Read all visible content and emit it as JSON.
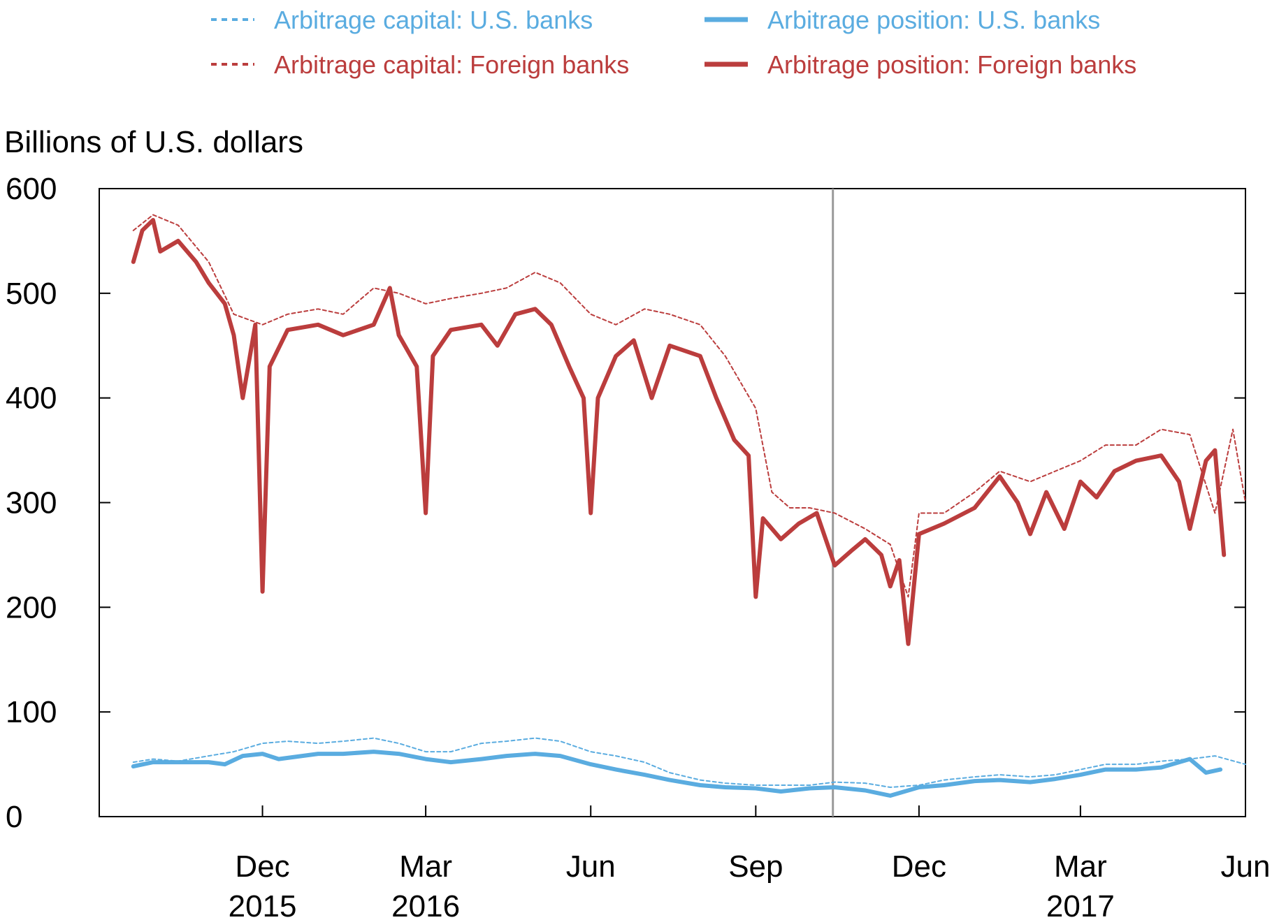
{
  "chart_data": {
    "type": "line",
    "ylabel": "Billions of U.S. dollars",
    "ylim": [
      0,
      600
    ],
    "yticks": [
      0,
      100,
      200,
      300,
      400,
      500,
      600
    ],
    "xlim": [
      "2015-09-01",
      "2017-06-01"
    ],
    "xticks": [
      {
        "date": "2015-12-01",
        "label": "Dec",
        "year": "2015"
      },
      {
        "date": "2016-03-01",
        "label": "Mar",
        "year": "2016"
      },
      {
        "date": "2016-06-01",
        "label": "Jun",
        "year": ""
      },
      {
        "date": "2016-09-01",
        "label": "Sep",
        "year": ""
      },
      {
        "date": "2016-12-01",
        "label": "Dec",
        "year": ""
      },
      {
        "date": "2017-03-01",
        "label": "Mar",
        "year": "2017"
      },
      {
        "date": "2017-06-01",
        "label": "Jun",
        "year": ""
      }
    ],
    "event_line": {
      "date": "2016-10-14"
    },
    "grid": false,
    "legend_position": "top",
    "colors": {
      "us": "#5aace0",
      "foreign": "#bb3d3d",
      "event_line": "#999999"
    },
    "series": [
      {
        "name": "Arbitrage capital: U.S. banks",
        "style": "dotted",
        "color": "#5aace0",
        "points": [
          [
            "2015-09-20",
            52
          ],
          [
            "2015-10-01",
            55
          ],
          [
            "2015-10-15",
            53
          ],
          [
            "2015-11-01",
            58
          ],
          [
            "2015-11-15",
            62
          ],
          [
            "2015-12-01",
            70
          ],
          [
            "2015-12-15",
            72
          ],
          [
            "2016-01-01",
            70
          ],
          [
            "2016-01-15",
            72
          ],
          [
            "2016-02-01",
            75
          ],
          [
            "2016-02-15",
            70
          ],
          [
            "2016-03-01",
            62
          ],
          [
            "2016-03-15",
            62
          ],
          [
            "2016-04-01",
            70
          ],
          [
            "2016-04-15",
            72
          ],
          [
            "2016-05-01",
            75
          ],
          [
            "2016-05-15",
            72
          ],
          [
            "2016-06-01",
            62
          ],
          [
            "2016-06-15",
            58
          ],
          [
            "2016-07-01",
            52
          ],
          [
            "2016-07-15",
            42
          ],
          [
            "2016-08-01",
            35
          ],
          [
            "2016-08-15",
            32
          ],
          [
            "2016-09-01",
            30
          ],
          [
            "2016-09-15",
            30
          ],
          [
            "2016-10-01",
            30
          ],
          [
            "2016-10-15",
            33
          ],
          [
            "2016-11-01",
            32
          ],
          [
            "2016-11-15",
            28
          ],
          [
            "2016-12-01",
            30
          ],
          [
            "2016-12-15",
            35
          ],
          [
            "2017-01-01",
            38
          ],
          [
            "2017-01-15",
            40
          ],
          [
            "2017-02-01",
            38
          ],
          [
            "2017-02-15",
            40
          ],
          [
            "2017-03-01",
            45
          ],
          [
            "2017-03-15",
            50
          ],
          [
            "2017-04-01",
            50
          ],
          [
            "2017-04-15",
            53
          ],
          [
            "2017-05-01",
            55
          ],
          [
            "2017-05-15",
            58
          ],
          [
            "2017-06-01",
            50
          ]
        ]
      },
      {
        "name": "Arbitrage position: U.S. banks",
        "style": "solid",
        "color": "#5aace0",
        "points": [
          [
            "2015-09-20",
            48
          ],
          [
            "2015-10-01",
            52
          ],
          [
            "2015-10-15",
            52
          ],
          [
            "2015-11-01",
            52
          ],
          [
            "2015-11-10",
            50
          ],
          [
            "2015-11-20",
            58
          ],
          [
            "2015-12-01",
            60
          ],
          [
            "2015-12-10",
            55
          ],
          [
            "2016-01-01",
            60
          ],
          [
            "2016-01-15",
            60
          ],
          [
            "2016-02-01",
            62
          ],
          [
            "2016-02-15",
            60
          ],
          [
            "2016-03-01",
            55
          ],
          [
            "2016-03-15",
            52
          ],
          [
            "2016-04-01",
            55
          ],
          [
            "2016-04-15",
            58
          ],
          [
            "2016-05-01",
            60
          ],
          [
            "2016-05-15",
            58
          ],
          [
            "2016-06-01",
            50
          ],
          [
            "2016-06-15",
            45
          ],
          [
            "2016-07-01",
            40
          ],
          [
            "2016-07-15",
            35
          ],
          [
            "2016-08-01",
            30
          ],
          [
            "2016-08-15",
            28
          ],
          [
            "2016-09-01",
            27
          ],
          [
            "2016-09-15",
            24
          ],
          [
            "2016-10-01",
            27
          ],
          [
            "2016-10-15",
            28
          ],
          [
            "2016-11-01",
            25
          ],
          [
            "2016-11-15",
            20
          ],
          [
            "2016-12-01",
            28
          ],
          [
            "2016-12-15",
            30
          ],
          [
            "2017-01-01",
            34
          ],
          [
            "2017-01-15",
            35
          ],
          [
            "2017-02-01",
            33
          ],
          [
            "2017-02-15",
            36
          ],
          [
            "2017-03-01",
            40
          ],
          [
            "2017-03-15",
            45
          ],
          [
            "2017-04-01",
            45
          ],
          [
            "2017-04-15",
            47
          ],
          [
            "2017-05-01",
            55
          ],
          [
            "2017-05-10",
            42
          ],
          [
            "2017-05-18",
            45
          ]
        ]
      },
      {
        "name": "Arbitrage capital: Foreign banks",
        "style": "dotted",
        "color": "#bb3d3d",
        "points": [
          [
            "2015-09-20",
            560
          ],
          [
            "2015-10-01",
            575
          ],
          [
            "2015-10-15",
            565
          ],
          [
            "2015-11-01",
            530
          ],
          [
            "2015-11-15",
            480
          ],
          [
            "2015-12-01",
            470
          ],
          [
            "2015-12-15",
            480
          ],
          [
            "2016-01-01",
            485
          ],
          [
            "2016-01-15",
            480
          ],
          [
            "2016-02-01",
            505
          ],
          [
            "2016-02-15",
            500
          ],
          [
            "2016-03-01",
            490
          ],
          [
            "2016-03-15",
            495
          ],
          [
            "2016-04-01",
            500
          ],
          [
            "2016-04-15",
            505
          ],
          [
            "2016-05-01",
            520
          ],
          [
            "2016-05-15",
            510
          ],
          [
            "2016-06-01",
            480
          ],
          [
            "2016-06-15",
            470
          ],
          [
            "2016-07-01",
            485
          ],
          [
            "2016-07-15",
            480
          ],
          [
            "2016-08-01",
            470
          ],
          [
            "2016-08-15",
            440
          ],
          [
            "2016-09-01",
            390
          ],
          [
            "2016-09-10",
            310
          ],
          [
            "2016-09-20",
            295
          ],
          [
            "2016-10-01",
            295
          ],
          [
            "2016-10-15",
            290
          ],
          [
            "2016-11-01",
            275
          ],
          [
            "2016-11-15",
            260
          ],
          [
            "2016-11-25",
            210
          ],
          [
            "2016-12-01",
            290
          ],
          [
            "2016-12-15",
            290
          ],
          [
            "2017-01-01",
            310
          ],
          [
            "2017-01-15",
            330
          ],
          [
            "2017-02-01",
            320
          ],
          [
            "2017-02-15",
            330
          ],
          [
            "2017-03-01",
            340
          ],
          [
            "2017-03-15",
            355
          ],
          [
            "2017-04-01",
            355
          ],
          [
            "2017-04-15",
            370
          ],
          [
            "2017-05-01",
            365
          ],
          [
            "2017-05-15",
            290
          ],
          [
            "2017-05-25",
            370
          ],
          [
            "2017-06-01",
            300
          ]
        ]
      },
      {
        "name": "Arbitrage position: Foreign banks",
        "style": "solid",
        "color": "#bb3d3d",
        "points": [
          [
            "2015-09-20",
            530
          ],
          [
            "2015-09-25",
            560
          ],
          [
            "2015-10-01",
            570
          ],
          [
            "2015-10-05",
            540
          ],
          [
            "2015-10-15",
            550
          ],
          [
            "2015-10-25",
            530
          ],
          [
            "2015-11-01",
            510
          ],
          [
            "2015-11-10",
            490
          ],
          [
            "2015-11-15",
            460
          ],
          [
            "2015-11-20",
            400
          ],
          [
            "2015-11-27",
            470
          ],
          [
            "2015-12-01",
            215
          ],
          [
            "2015-12-05",
            430
          ],
          [
            "2015-12-15",
            465
          ],
          [
            "2016-01-01",
            470
          ],
          [
            "2016-01-15",
            460
          ],
          [
            "2016-02-01",
            470
          ],
          [
            "2016-02-10",
            505
          ],
          [
            "2016-02-15",
            460
          ],
          [
            "2016-02-25",
            430
          ],
          [
            "2016-03-01",
            290
          ],
          [
            "2016-03-05",
            440
          ],
          [
            "2016-03-15",
            465
          ],
          [
            "2016-04-01",
            470
          ],
          [
            "2016-04-10",
            450
          ],
          [
            "2016-04-20",
            480
          ],
          [
            "2016-05-01",
            485
          ],
          [
            "2016-05-10",
            470
          ],
          [
            "2016-05-20",
            430
          ],
          [
            "2016-05-28",
            400
          ],
          [
            "2016-06-01",
            290
          ],
          [
            "2016-06-05",
            400
          ],
          [
            "2016-06-15",
            440
          ],
          [
            "2016-06-25",
            455
          ],
          [
            "2016-07-05",
            400
          ],
          [
            "2016-07-15",
            450
          ],
          [
            "2016-08-01",
            440
          ],
          [
            "2016-08-10",
            400
          ],
          [
            "2016-08-20",
            360
          ],
          [
            "2016-08-28",
            345
          ],
          [
            "2016-09-01",
            210
          ],
          [
            "2016-09-05",
            285
          ],
          [
            "2016-09-15",
            265
          ],
          [
            "2016-09-25",
            280
          ],
          [
            "2016-10-05",
            290
          ],
          [
            "2016-10-15",
            240
          ],
          [
            "2016-10-25",
            255
          ],
          [
            "2016-11-01",
            265
          ],
          [
            "2016-11-10",
            250
          ],
          [
            "2016-11-15",
            220
          ],
          [
            "2016-11-20",
            245
          ],
          [
            "2016-11-25",
            165
          ],
          [
            "2016-12-01",
            270
          ],
          [
            "2016-12-15",
            280
          ],
          [
            "2017-01-01",
            295
          ],
          [
            "2017-01-15",
            325
          ],
          [
            "2017-01-25",
            300
          ],
          [
            "2017-02-01",
            270
          ],
          [
            "2017-02-10",
            310
          ],
          [
            "2017-02-20",
            275
          ],
          [
            "2017-03-01",
            320
          ],
          [
            "2017-03-10",
            305
          ],
          [
            "2017-03-20",
            330
          ],
          [
            "2017-04-01",
            340
          ],
          [
            "2017-04-15",
            345
          ],
          [
            "2017-04-25",
            320
          ],
          [
            "2017-05-01",
            275
          ],
          [
            "2017-05-10",
            340
          ],
          [
            "2017-05-15",
            350
          ],
          [
            "2017-05-20",
            250
          ]
        ]
      }
    ]
  }
}
